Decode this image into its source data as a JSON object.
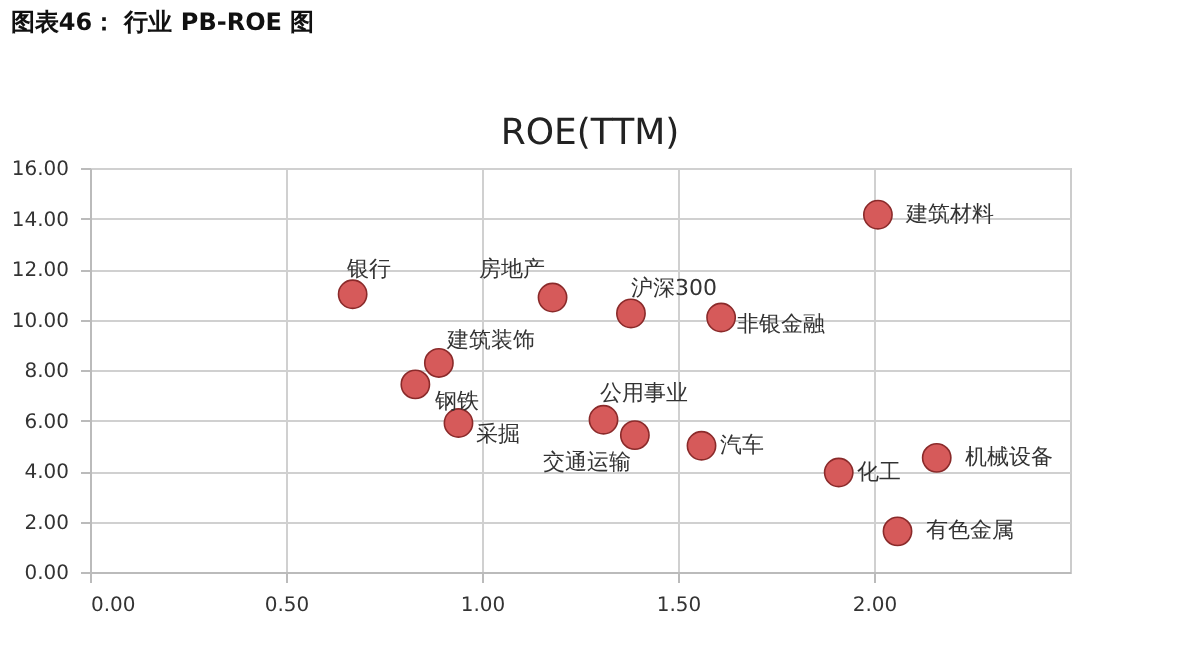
{
  "chart_data": {
    "type": "scatter",
    "title": "图表46：  行业 PB-ROE 图",
    "subtitle": "ROE(TTM)",
    "x": [
      0.67,
      1.18,
      0.89,
      0.83,
      0.94,
      2.01,
      1.38,
      1.61,
      1.31,
      1.39,
      1.56,
      1.91,
      2.16,
      2.06
    ],
    "series": [
      {
        "color": "#d65a5a",
        "values": [
          11.0,
          10.87,
          8.28,
          7.43,
          5.9,
          14.15,
          10.24,
          10.08,
          6.03,
          5.42,
          5.0,
          3.94,
          4.52,
          1.61
        ]
      }
    ],
    "annotations": [
      {
        "text": "银行",
        "x": 0.67,
        "y": 11.0
      },
      {
        "text": "房地产",
        "x": 1.18,
        "y": 10.87
      },
      {
        "text": "建筑装饰",
        "x": 0.89,
        "y": 8.28
      },
      {
        "text": "钢铁",
        "x": 0.83,
        "y": 7.43
      },
      {
        "text": "采掘",
        "x": 0.94,
        "y": 5.9
      },
      {
        "text": "建筑材料",
        "x": 2.01,
        "y": 14.15
      },
      {
        "text": "沪深300",
        "x": 1.38,
        "y": 10.24
      },
      {
        "text": "非银金融",
        "x": 1.61,
        "y": 10.08
      },
      {
        "text": "公用事业",
        "x": 1.31,
        "y": 6.03
      },
      {
        "text": "交通运输",
        "x": 1.39,
        "y": 5.42
      },
      {
        "text": "汽车",
        "x": 1.56,
        "y": 5.0
      },
      {
        "text": "化工",
        "x": 1.91,
        "y": 3.94
      },
      {
        "text": "机械设备",
        "x": 2.16,
        "y": 4.52
      },
      {
        "text": "有色金属",
        "x": 2.06,
        "y": 1.61
      }
    ],
    "xlim": [
      0,
      2.5
    ],
    "xticks": [
      {
        "value": 0,
        "label": "0.00"
      },
      {
        "value": 0.5,
        "label": "0.50"
      },
      {
        "value": 1,
        "label": "1.00"
      },
      {
        "value": 1.5,
        "label": "1.50"
      },
      {
        "value": 2,
        "label": "2.00"
      }
    ],
    "ylim": [
      0,
      16
    ],
    "yticks": [
      {
        "value": 0,
        "label": "0.00"
      },
      {
        "value": 2,
        "label": "2.00"
      },
      {
        "value": 4,
        "label": "4.00"
      },
      {
        "value": 6,
        "label": "6.00"
      },
      {
        "value": 8,
        "label": "8.00"
      },
      {
        "value": 10,
        "label": "10.00"
      },
      {
        "value": 12,
        "label": "12.00"
      },
      {
        "value": 14,
        "label": "14.00"
      },
      {
        "value": 16,
        "label": "16.00"
      }
    ],
    "grid": true
  }
}
